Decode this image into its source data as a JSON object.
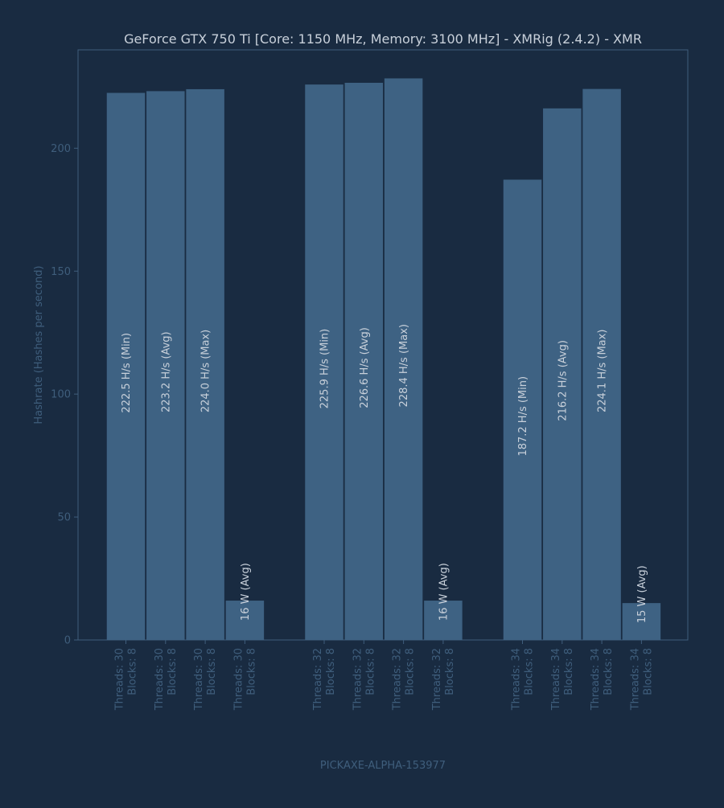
{
  "chart_data": {
    "type": "bar",
    "title": "GeForce GTX 750 Ti [Core: 1150 MHz, Memory: 3100 MHz] - XMRig (2.4.2) - XMR",
    "xlabel": "PICKAXE-ALPHA-153977",
    "ylabel": "Hashrate (Hashes per second)",
    "ylim": [
      0,
      240
    ],
    "yticks": [
      0,
      50,
      100,
      150,
      200
    ],
    "grid": false,
    "groups": [
      {
        "category": "Threads: 30\nBlocks: 8",
        "bars": [
          {
            "value": 222.5,
            "label": "222.5 H/s (Min)"
          },
          {
            "value": 223.2,
            "label": "223.2 H/s (Avg)"
          },
          {
            "value": 224.0,
            "label": "224.0 H/s (Max)"
          },
          {
            "value": 16,
            "label": "16 W (Avg)"
          }
        ]
      },
      {
        "category": "Threads: 32\nBlocks: 8",
        "bars": [
          {
            "value": 225.9,
            "label": "225.9 H/s (Min)"
          },
          {
            "value": 226.6,
            "label": "226.6 H/s (Avg)"
          },
          {
            "value": 228.4,
            "label": "228.4 H/s (Max)"
          },
          {
            "value": 16,
            "label": "16 W (Avg)"
          }
        ]
      },
      {
        "category": "Threads: 34\nBlocks: 8",
        "bars": [
          {
            "value": 187.2,
            "label": "187.2 H/s (Min)"
          },
          {
            "value": 216.2,
            "label": "216.2 H/s (Avg)"
          },
          {
            "value": 224.1,
            "label": "224.1 H/s (Max)"
          },
          {
            "value": 15,
            "label": "15 W (Avg)"
          }
        ]
      }
    ],
    "colors": {
      "background": "#192b41",
      "bar": "#3e6283",
      "axis": "#3f5e7c",
      "text": "#c8d0da"
    }
  }
}
